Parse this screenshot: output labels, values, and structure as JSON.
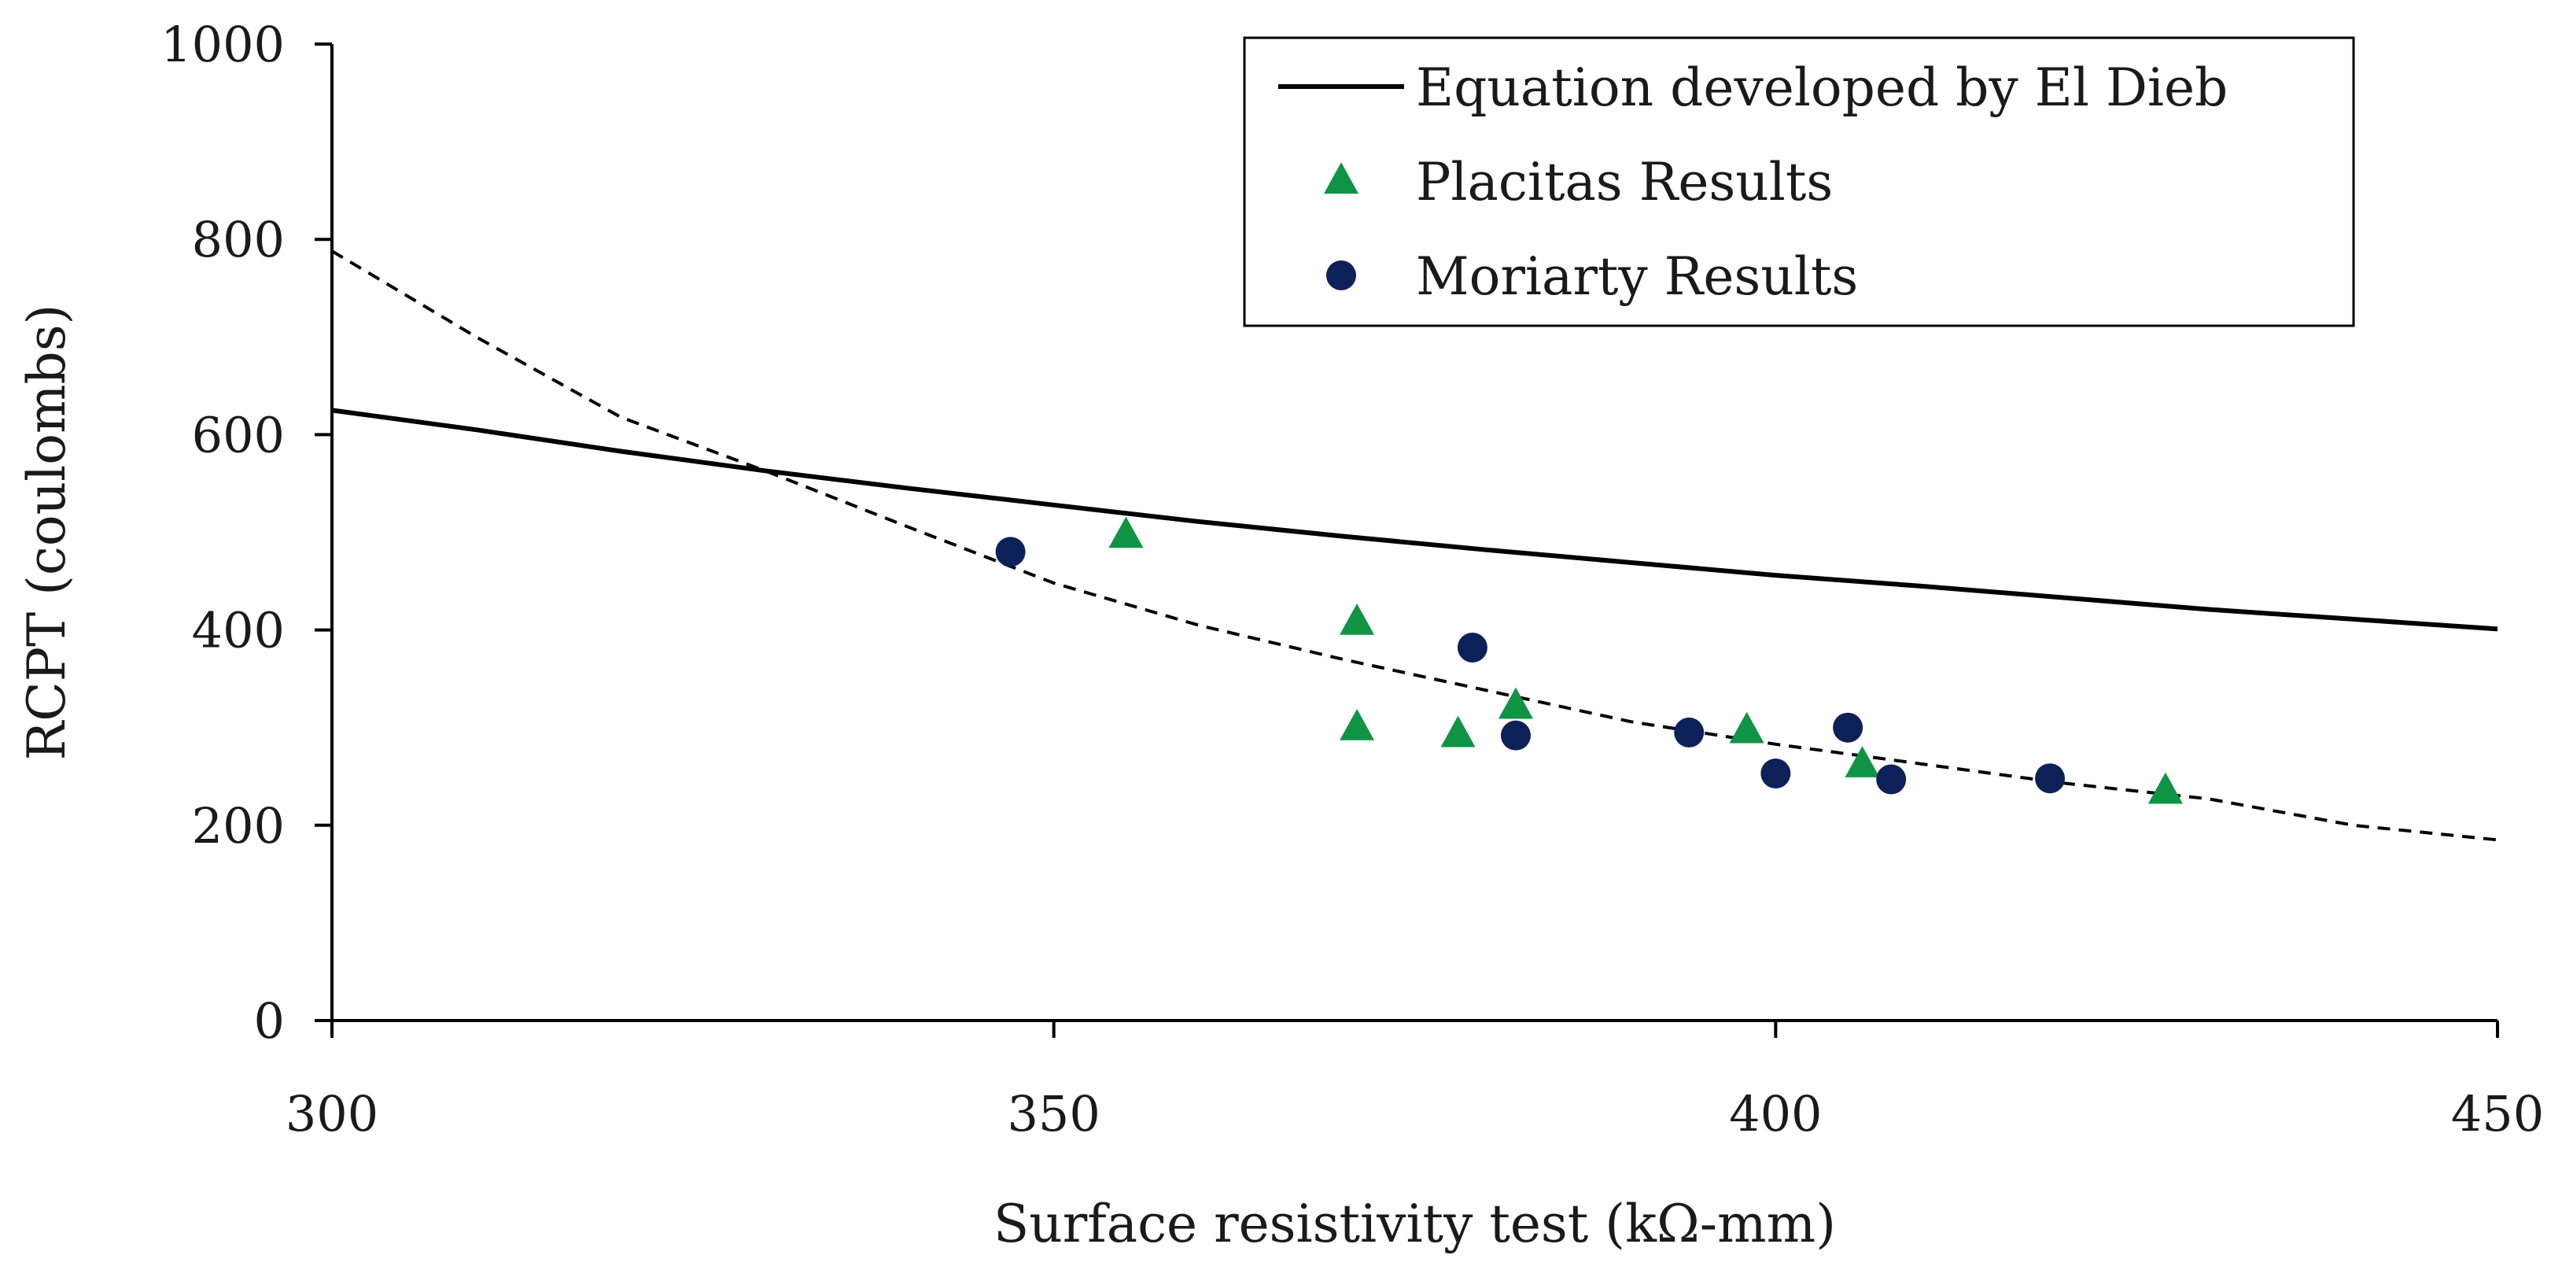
{
  "chart_data": {
    "type": "scatter",
    "title": "",
    "xlabel": "Surface resistivity test (kΩ-mm)",
    "ylabel": "RCPT (coulombs)",
    "xlim": [
      300,
      450
    ],
    "ylim": [
      0,
      1000
    ],
    "xticks": [
      "300",
      "350",
      "400",
      "450"
    ],
    "yticks": [
      "0",
      "200",
      "400",
      "600",
      "800",
      "1000"
    ],
    "grid": false,
    "legend": {
      "placement": "top-right",
      "entries": [
        {
          "label": "Equation developed by El Dieb",
          "marker": "solid-line",
          "color": "#000000"
        },
        {
          "label": "Placitas Results",
          "marker": "triangle",
          "color": "#0f9445"
        },
        {
          "label": "Moriarty Results",
          "marker": "circle",
          "color": "#0d2158"
        }
      ]
    },
    "series": [
      {
        "name": "Equation developed by El Dieb",
        "kind": "line",
        "style": "solid",
        "color": "#000000",
        "x": [
          300,
          310,
          320,
          330,
          340,
          350,
          360,
          370,
          380,
          390,
          400,
          410,
          420,
          430,
          440,
          450
        ],
        "y": [
          625,
          605,
          583,
          563,
          545,
          528,
          511,
          496,
          482,
          469,
          456,
          445,
          433,
          421,
          411,
          401
        ]
      },
      {
        "name": "",
        "kind": "line",
        "style": "dashed",
        "color": "#000000",
        "x": [
          300,
          310,
          320,
          330,
          340,
          350,
          360,
          370,
          380,
          390,
          400,
          410,
          420,
          430,
          440,
          450
        ],
        "y": [
          788,
          700,
          618,
          563,
          505,
          448,
          405,
          370,
          338,
          306,
          283,
          263,
          243,
          227,
          200,
          185
        ]
      },
      {
        "name": "Placitas Results",
        "kind": "scatter",
        "marker": "triangle",
        "color": "#0f9445",
        "x": [
          355,
          371,
          371,
          378,
          382,
          398,
          406,
          427
        ],
        "y": [
          497,
          408,
          300,
          293,
          322,
          297,
          262,
          235
        ]
      },
      {
        "name": "Moriarty Results",
        "kind": "scatter",
        "marker": "circle",
        "color": "#0d2158",
        "x": [
          347,
          379,
          382,
          394,
          400,
          405,
          408,
          419
        ],
        "y": [
          480,
          382,
          292,
          295,
          253,
          300,
          247,
          248
        ]
      }
    ]
  }
}
